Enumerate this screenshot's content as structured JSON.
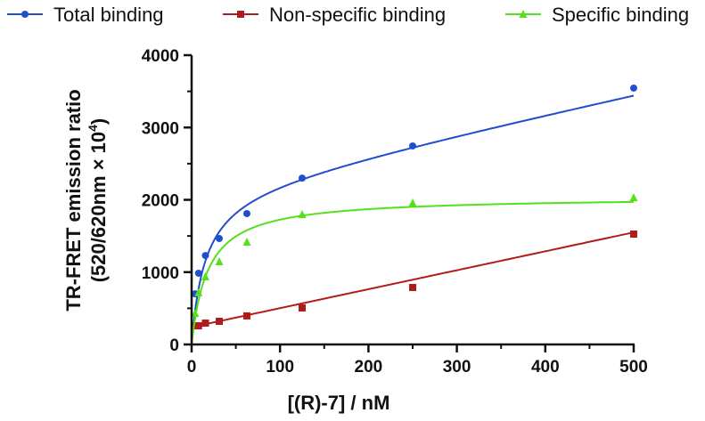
{
  "chart_data": {
    "type": "scatter",
    "title": "",
    "xlabel": "[(R)-7] / nM",
    "ylabel_line1": "TR-FRET emission ratio",
    "ylabel_line2": "(520/620nm × 10",
    "ylabel_sup": "4",
    "ylabel_end": ")",
    "xlim": [
      0,
      500
    ],
    "ylim": [
      0,
      4000
    ],
    "xticks": [
      0,
      100,
      200,
      300,
      400,
      500
    ],
    "yticks": [
      0,
      1000,
      2000,
      3000,
      4000
    ],
    "legend_placement": "top",
    "x": [
      3.9,
      7.8,
      15.6,
      31.25,
      62.5,
      125,
      250,
      500
    ],
    "series": [
      {
        "name": "Total binding",
        "color": "#1f4fcc",
        "marker": "circle",
        "values": [
          700,
          985,
          1230,
          1465,
          1810,
          2300,
          2745,
          3545
        ],
        "fit": {
          "model": "one-site total",
          "Bmax": 2184,
          "Kd": 15,
          "NS": 2.64,
          "background": 0
        }
      },
      {
        "name": "Non-specific binding",
        "color": "#b01c1c",
        "marker": "square",
        "values": [
          258,
          258,
          295,
          320,
          395,
          505,
          788,
          1526
        ],
        "fit": {
          "model": "linear",
          "slope": 2.62,
          "intercept": 240
        }
      },
      {
        "name": "Specific binding",
        "color": "#55e01c",
        "marker": "triangle",
        "values": [
          430,
          715,
          935,
          1145,
          1415,
          1797,
          1957,
          2030
        ],
        "fit": {
          "model": "one-site specific",
          "Bmax": 2043,
          "Kd": 18.4
        }
      }
    ]
  }
}
